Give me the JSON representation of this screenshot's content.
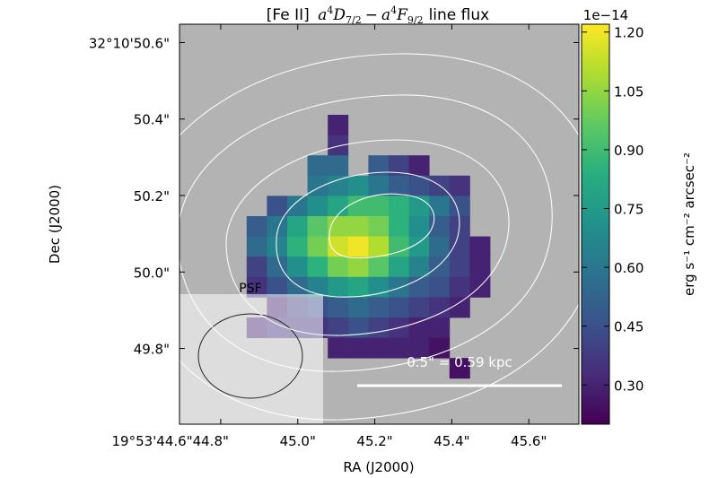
{
  "chart_data": {
    "type": "heatmap",
    "title_prefix": "[Fe II]",
    "title_math": {
      "upper": {
        "base": "a",
        "sup": "4",
        "letter": "D",
        "sub": "7/2"
      },
      "minus": "−",
      "lower": {
        "base": "a",
        "sup": "4",
        "letter": "F",
        "sub": "9/2"
      }
    },
    "title_suffix": "line flux",
    "xlabel": "RA (J2000)",
    "ylabel": "Dec (J2000)",
    "x_ticks": [
      {
        "label": "19°53'44.6\"44.8\"",
        "ra": 44.8
      },
      {
        "label": "45.0\"",
        "ra": 45.0
      },
      {
        "label": "45.2\"",
        "ra": 45.2
      },
      {
        "label": "45.4\"",
        "ra": 45.4
      },
      {
        "label": "45.6\"",
        "ra": 45.6
      }
    ],
    "y_ticks": [
      {
        "label": "32°10'50.6\"",
        "dec": 50.6
      },
      {
        "label": "50.4\"",
        "dec": 50.4
      },
      {
        "label": "50.2\"",
        "dec": 50.2
      },
      {
        "label": "50.0\"",
        "dec": 50.0
      },
      {
        "label": "49.8\"",
        "dec": 49.8
      }
    ],
    "colorbar": {
      "label": "erg s⁻¹ cm⁻² arcsec⁻²",
      "multiplier": "1e−14",
      "vmin": 0.2,
      "vmax": 1.22,
      "ticks": [
        1.2,
        1.05,
        0.9,
        0.75,
        0.6,
        0.45,
        0.3
      ],
      "tick_labels": [
        "1.20",
        "1.05",
        "0.90",
        "0.75",
        "0.60",
        "0.45",
        "0.30"
      ],
      "cmap": "viridis"
    },
    "grid": false,
    "scalebar_label": "0.5\" = 0.59 kpc",
    "psf_label": "PSF",
    "flux_map": {
      "rows": [
        {
          "col0": 7,
          "values": [
            0.3
          ]
        },
        {
          "col0": 7,
          "values": [
            0.35
          ]
        },
        {
          "col0": 6,
          "values": [
            0.55,
            0.55,
            null,
            0.5,
            0.4,
            0.3
          ]
        },
        {
          "col0": 6,
          "values": [
            0.6,
            0.65,
            0.7,
            0.6,
            0.5,
            0.45,
            0.4,
            0.35
          ]
        },
        {
          "col0": 4,
          "values": [
            0.45,
            0.6,
            0.7,
            0.8,
            0.9,
            0.9,
            0.85,
            0.75,
            0.6,
            0.45
          ]
        },
        {
          "col0": 3,
          "values": [
            0.5,
            0.6,
            0.8,
            0.95,
            1.05,
            1.05,
            1.0,
            0.85,
            0.7,
            0.5,
            0.4
          ]
        },
        {
          "col0": 3,
          "values": [
            0.55,
            0.65,
            0.85,
            1.0,
            1.15,
            1.2,
            1.1,
            0.9,
            0.75,
            0.55,
            0.4,
            0.3
          ]
        },
        {
          "col0": 3,
          "values": [
            0.4,
            0.55,
            0.7,
            0.85,
            1.0,
            1.05,
            0.95,
            0.8,
            0.65,
            0.5,
            0.4,
            0.3
          ]
        },
        {
          "col0": 3,
          "values": [
            0.35,
            0.45,
            0.55,
            0.65,
            0.75,
            0.8,
            0.7,
            0.6,
            0.5,
            0.45,
            0.35,
            0.3
          ]
        },
        {
          "col0": 4,
          "values": [
            0.3,
            0.4,
            0.45,
            0.5,
            0.55,
            0.5,
            0.45,
            0.4,
            0.35,
            0.3
          ]
        },
        {
          "col0": 3,
          "values": [
            0.3,
            0.35,
            0.35,
            0.35,
            0.4,
            0.45,
            0.4,
            0.35,
            0.3,
            0.3
          ]
        },
        {
          "col0": 7,
          "values": [
            0.3,
            0.3,
            0.3,
            0.3,
            0.3,
            0.25
          ]
        },
        {
          "col0": 13,
          "values": [
            0.25
          ]
        }
      ]
    }
  }
}
